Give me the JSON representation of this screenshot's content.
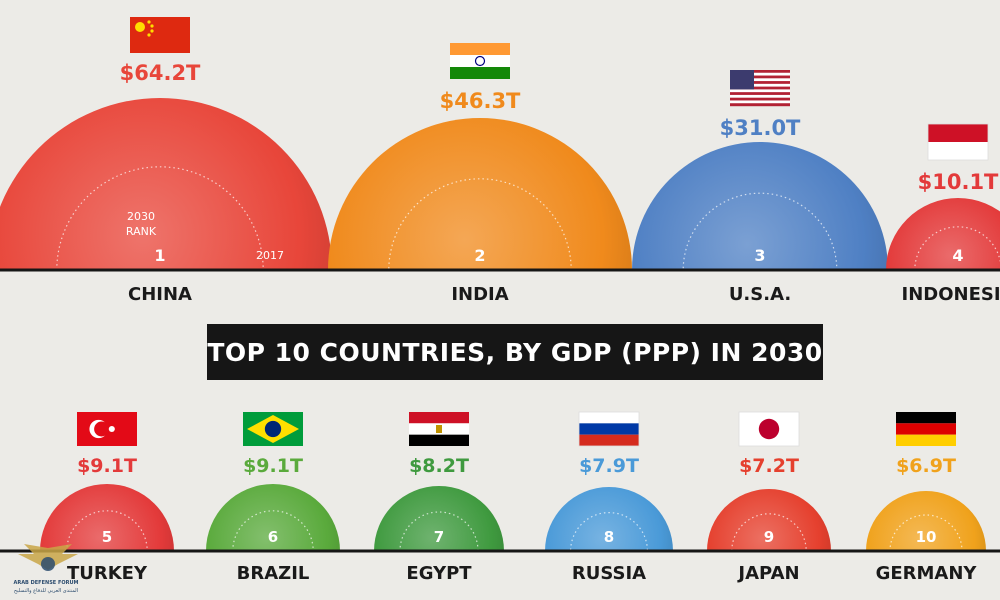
{
  "chart_data": {
    "type": "bubble",
    "title": "TOP 10 COUNTRIES, BY GDP (PPP) IN 2030",
    "annotations": {
      "rank_label": [
        "2030",
        "RANK"
      ],
      "inner_ring_label": "2017"
    },
    "countries": [
      {
        "rank": "1",
        "name": "CHINA",
        "value": "$64.2T",
        "gdp_trillions": 64.2,
        "flag": "china-flag",
        "color": "#e8463a"
      },
      {
        "rank": "2",
        "name": "INDIA",
        "value": "$46.3T",
        "gdp_trillions": 46.3,
        "flag": "india-flag",
        "color": "#f08a1c"
      },
      {
        "rank": "3",
        "name": "U.S.A.",
        "value": "$31.0T",
        "gdp_trillions": 31.0,
        "flag": "usa-flag",
        "color": "#4f80c4"
      },
      {
        "rank": "4",
        "name": "INDONESIA",
        "value": "$10.1T",
        "gdp_trillions": 10.1,
        "flag": "indonesia-flag",
        "color": "#e33a3a"
      },
      {
        "rank": "5",
        "name": "TURKEY",
        "value": "$9.1T",
        "gdp_trillions": 9.1,
        "flag": "turkey-flag",
        "color": "#e33a3a"
      },
      {
        "rank": "6",
        "name": "BRAZIL",
        "value": "$9.1T",
        "gdp_trillions": 9.1,
        "flag": "brazil-flag",
        "color": "#5aaa3c"
      },
      {
        "rank": "7",
        "name": "EGYPT",
        "value": "$8.2T",
        "gdp_trillions": 8.2,
        "flag": "egypt-flag",
        "color": "#3f9a3f"
      },
      {
        "rank": "8",
        "name": "RUSSIA",
        "value": "$7.9T",
        "gdp_trillions": 7.9,
        "flag": "russia-flag",
        "color": "#4a9ad8"
      },
      {
        "rank": "9",
        "name": "JAPAN",
        "value": "$7.2T",
        "gdp_trillions": 7.2,
        "flag": "japan-flag",
        "color": "#e5402e"
      },
      {
        "rank": "10",
        "name": "GERMANY",
        "value": "$6.9T",
        "gdp_trillions": 6.9,
        "flag": "germany-flag",
        "color": "#f0a21c"
      }
    ]
  },
  "watermark": {
    "title": "ARAB DEFENSE FORUM",
    "subtitle": "المنتدى العربي للدفاع والتسليح"
  }
}
